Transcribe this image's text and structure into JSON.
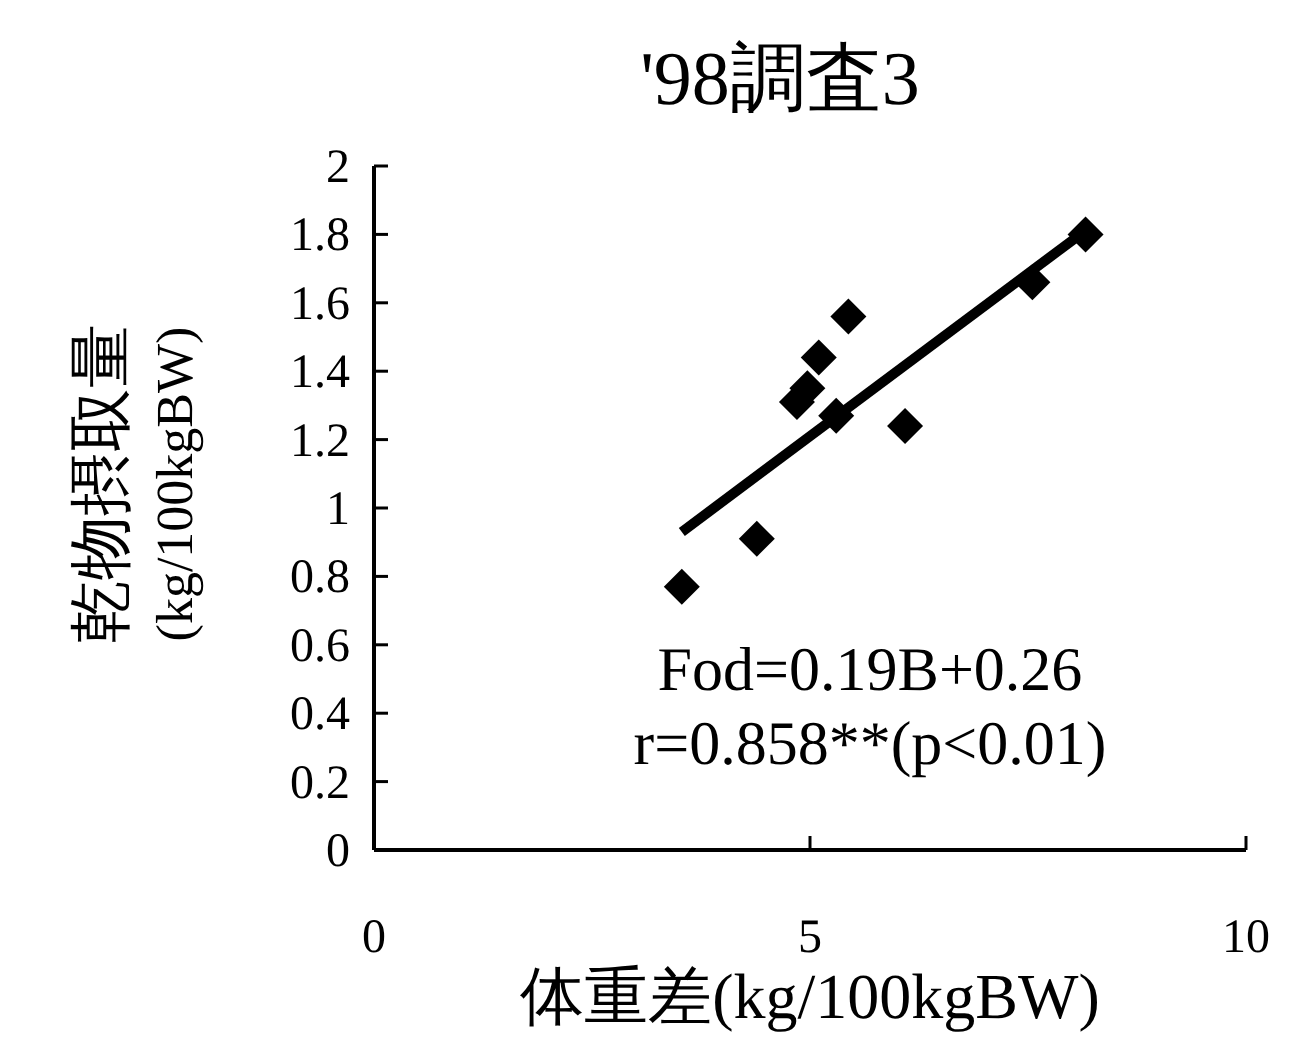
{
  "chart_data": {
    "type": "scatter",
    "title": "'98調査3",
    "xlabel": "体重差(kg/100kgBW)",
    "ylabel": "乾物摂取量(kg/100kgBW)",
    "xlim": [
      0,
      10
    ],
    "xticks": [
      0,
      5,
      10
    ],
    "ylim": [
      0,
      2
    ],
    "yticks": [
      0,
      {
        "value": 0.2,
        "label": "0.2"
      },
      {
        "value": 0.4,
        "label": "0.4"
      },
      {
        "value": 0.6,
        "label": "0.6"
      },
      {
        "value": 0.8,
        "label": "0.8"
      },
      1,
      {
        "value": 1.2,
        "label": "1.2"
      },
      {
        "value": 1.4,
        "label": "1.4"
      },
      {
        "value": 1.6,
        "label": "1.6"
      },
      {
        "value": 1.8,
        "label": "1.8"
      },
      2
    ],
    "grid": false,
    "series": [
      {
        "color": "#000000",
        "marker": "diamond",
        "x": [
          3.53,
          4.39,
          4.85,
          4.97,
          5.1,
          5.44,
          5.3,
          6.09,
          7.55,
          8.16
        ],
        "values": [
          0.77,
          0.91,
          1.31,
          1.35,
          1.44,
          1.56,
          1.27,
          1.24,
          1.66,
          1.8
        ]
      },
      {
        "type": "line",
        "color": "#000000",
        "marker": "none",
        "line_style": "solid",
        "x": [
          3.53,
          8.1
        ],
        "values": [
          0.93,
          1.8
        ]
      }
    ],
    "annotations": [
      "Fod=0.19B+0.26",
      "r=0.858**(p<0.01)"
    ]
  }
}
